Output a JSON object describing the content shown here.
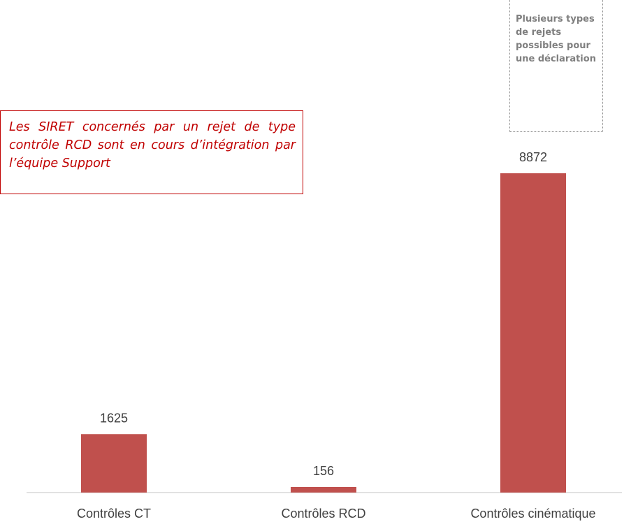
{
  "chart_data": {
    "type": "bar",
    "categories": [
      "Contrôles CT",
      "Contrôles RCD",
      "Contrôles cinématique"
    ],
    "values": [
      1625,
      156,
      8872
    ],
    "color": "#c0504d",
    "annotations": [
      "Les SIRET concernés par un rejet de type contrôle RCD sont en cours d’intégration par l’équipe Support",
      "Plusieurs types de rejets possibles pour une déclaration"
    ]
  }
}
